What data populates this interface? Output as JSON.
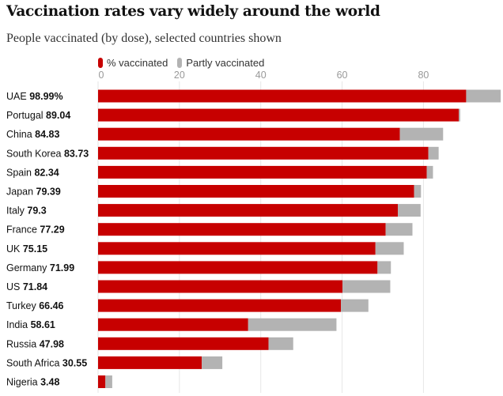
{
  "title": "Vaccination rates vary widely around the world",
  "subtitle": "People vaccinated (by dose), selected countries shown",
  "legend": {
    "vaccinated_label": "% vaccinated",
    "partly_label": "Partly vaccinated"
  },
  "colors": {
    "vaccinated": "#c70000",
    "partly": "#b3b3b3",
    "grid": "#e6e6e6"
  },
  "chart_data": {
    "type": "bar",
    "orientation": "horizontal",
    "stacked": true,
    "xlim": [
      0,
      98
    ],
    "x_ticks": [
      0,
      20,
      40,
      60,
      80
    ],
    "categories": [
      "UAE",
      "Portugal",
      "China",
      "South Korea",
      "Spain",
      "Japan",
      "Italy",
      "France",
      "UK",
      "Germany",
      "US",
      "Turkey",
      "India",
      "Russia",
      "South Africa",
      "Nigeria"
    ],
    "value_labels": [
      "98.99%",
      "89.04",
      "84.83",
      "83.73",
      "82.34",
      "79.39",
      "79.3",
      "77.29",
      "75.15",
      "71.99",
      "71.84",
      "66.46",
      "58.61",
      "47.98",
      "30.55",
      "3.48"
    ],
    "series": [
      {
        "name": "% vaccinated",
        "values": [
          90.5,
          88.7,
          74.2,
          81.2,
          80.8,
          77.7,
          73.7,
          70.7,
          68.2,
          68.7,
          60.1,
          59.7,
          36.9,
          41.9,
          25.5,
          1.8
        ]
      },
      {
        "name": "Partly vaccinated",
        "values": [
          8.49,
          0.34,
          10.63,
          2.53,
          1.54,
          1.69,
          5.6,
          6.59,
          6.95,
          3.29,
          11.74,
          6.76,
          21.71,
          6.08,
          5.05,
          1.68
        ]
      }
    ],
    "grid": true,
    "legend_position": "top-left"
  }
}
